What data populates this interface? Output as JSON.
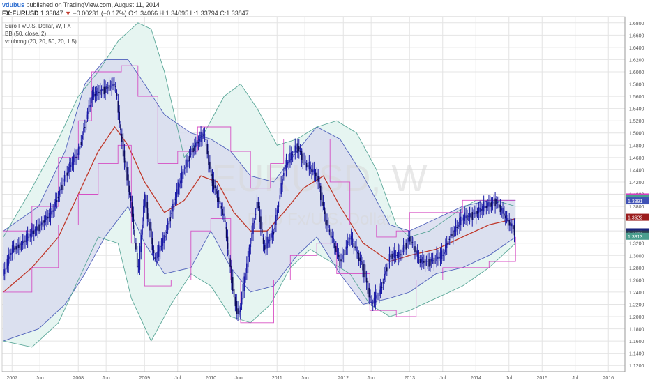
{
  "header": {
    "user": "vdubus",
    "published": "published on TradingView.com, August 11, 2014",
    "symbol": "FX:EURUSD",
    "last": "1.33847",
    "change_arrow": "▼",
    "change": "−0.00231 (−0.17%)",
    "ohlc": "O:1.34066 H:1.34095 L:1.33794 C:1.33847"
  },
  "legend": {
    "instrument": "Euro Fx/U.S. Dollar, W, FX",
    "bb": "BB (50, close, 2)",
    "vdubong": "vdubong (20, 20, 50, 20, 1.5)"
  },
  "watermark": {
    "symbol": "EURUSD, W",
    "name": "Euro Fx/U.S. Dollar"
  },
  "chart_data": {
    "type": "candlestick",
    "ylim": [
      1.11,
      1.69
    ],
    "y_ticks": [
      "1.6800",
      "1.6600",
      "1.6400",
      "1.6200",
      "1.6000",
      "1.5800",
      "1.5600",
      "1.5400",
      "1.5200",
      "1.5000",
      "1.4800",
      "1.4600",
      "1.4400",
      "1.4200",
      "1.4000",
      "1.3800",
      "1.3600",
      "1.3400",
      "1.3200",
      "1.3000",
      "1.2800",
      "1.2600",
      "1.2400",
      "1.2200",
      "1.2000",
      "1.1800",
      "1.1600",
      "1.1400",
      "1.1200"
    ],
    "x_ticks": [
      {
        "label": "2007",
        "t": 2007.0
      },
      {
        "label": "Jun",
        "t": 2007.42
      },
      {
        "label": "2008",
        "t": 2008.0
      },
      {
        "label": "Jun",
        "t": 2008.42
      },
      {
        "label": "2009",
        "t": 2009.0
      },
      {
        "label": "Jul",
        "t": 2009.5
      },
      {
        "label": "2010",
        "t": 2010.0
      },
      {
        "label": "Jun",
        "t": 2010.42
      },
      {
        "label": "2011",
        "t": 2011.0
      },
      {
        "label": "Jun",
        "t": 2011.42
      },
      {
        "label": "2012",
        "t": 2012.0
      },
      {
        "label": "Jun",
        "t": 2012.42
      },
      {
        "label": "2013",
        "t": 2013.0
      },
      {
        "label": "Jul",
        "t": 2013.5
      },
      {
        "label": "2014",
        "t": 2014.0
      },
      {
        "label": "Jul",
        "t": 2014.5
      },
      {
        "label": "2015",
        "t": 2015.0
      },
      {
        "label": "Jul",
        "t": 2015.5
      },
      {
        "label": "2016",
        "t": 2016.0
      }
    ],
    "xlim": [
      2006.85,
      2016.25
    ],
    "price_path": [
      [
        2006.87,
        1.27
      ],
      [
        2007.0,
        1.31
      ],
      [
        2007.15,
        1.32
      ],
      [
        2007.42,
        1.35
      ],
      [
        2007.6,
        1.37
      ],
      [
        2007.8,
        1.43
      ],
      [
        2008.0,
        1.47
      ],
      [
        2008.2,
        1.56
      ],
      [
        2008.35,
        1.57
      ],
      [
        2008.55,
        1.58
      ],
      [
        2008.65,
        1.49
      ],
      [
        2008.8,
        1.38
      ],
      [
        2008.9,
        1.27
      ],
      [
        2009.0,
        1.4
      ],
      [
        2009.15,
        1.29
      ],
      [
        2009.3,
        1.33
      ],
      [
        2009.5,
        1.41
      ],
      [
        2009.7,
        1.47
      ],
      [
        2009.9,
        1.5
      ],
      [
        2010.0,
        1.43
      ],
      [
        2010.2,
        1.36
      ],
      [
        2010.35,
        1.23
      ],
      [
        2010.42,
        1.2
      ],
      [
        2010.55,
        1.29
      ],
      [
        2010.7,
        1.39
      ],
      [
        2010.8,
        1.31
      ],
      [
        2010.95,
        1.34
      ],
      [
        2011.1,
        1.44
      ],
      [
        2011.3,
        1.48
      ],
      [
        2011.42,
        1.45
      ],
      [
        2011.6,
        1.43
      ],
      [
        2011.75,
        1.35
      ],
      [
        2011.95,
        1.29
      ],
      [
        2012.1,
        1.33
      ],
      [
        2012.3,
        1.28
      ],
      [
        2012.42,
        1.22
      ],
      [
        2012.55,
        1.24
      ],
      [
        2012.7,
        1.3
      ],
      [
        2012.85,
        1.3
      ],
      [
        2013.0,
        1.33
      ],
      [
        2013.15,
        1.29
      ],
      [
        2013.3,
        1.29
      ],
      [
        2013.5,
        1.3
      ],
      [
        2013.6,
        1.33
      ],
      [
        2013.8,
        1.36
      ],
      [
        2014.0,
        1.37
      ],
      [
        2014.15,
        1.38
      ],
      [
        2014.3,
        1.39
      ],
      [
        2014.45,
        1.36
      ],
      [
        2014.6,
        1.34
      ]
    ],
    "series": [
      {
        "name": "BB (50, close, 2) basis",
        "color": "#c0392b",
        "points": [
          [
            2006.87,
            1.24
          ],
          [
            2007.3,
            1.28
          ],
          [
            2007.7,
            1.33
          ],
          [
            2008.0,
            1.4
          ],
          [
            2008.3,
            1.47
          ],
          [
            2008.55,
            1.51
          ],
          [
            2008.75,
            1.48
          ],
          [
            2009.0,
            1.42
          ],
          [
            2009.3,
            1.37
          ],
          [
            2009.6,
            1.39
          ],
          [
            2009.85,
            1.43
          ],
          [
            2010.1,
            1.42
          ],
          [
            2010.35,
            1.37
          ],
          [
            2010.6,
            1.34
          ],
          [
            2010.85,
            1.34
          ],
          [
            2011.1,
            1.37
          ],
          [
            2011.4,
            1.41
          ],
          [
            2011.7,
            1.43
          ],
          [
            2011.95,
            1.38
          ],
          [
            2012.3,
            1.32
          ],
          [
            2012.7,
            1.29
          ],
          [
            2013.0,
            1.3
          ],
          [
            2013.4,
            1.31
          ],
          [
            2013.8,
            1.33
          ],
          [
            2014.2,
            1.35
          ],
          [
            2014.6,
            1.36
          ]
        ]
      },
      {
        "name": "BB upper",
        "color": "#3f51b5",
        "points": [
          [
            2006.87,
            1.34
          ],
          [
            2007.4,
            1.38
          ],
          [
            2007.8,
            1.47
          ],
          [
            2008.1,
            1.58
          ],
          [
            2008.4,
            1.62
          ],
          [
            2008.75,
            1.62
          ],
          [
            2009.0,
            1.58
          ],
          [
            2009.3,
            1.53
          ],
          [
            2009.7,
            1.5
          ],
          [
            2010.0,
            1.49
          ],
          [
            2010.3,
            1.47
          ],
          [
            2010.6,
            1.43
          ],
          [
            2010.95,
            1.42
          ],
          [
            2011.3,
            1.47
          ],
          [
            2011.6,
            1.51
          ],
          [
            2011.95,
            1.49
          ],
          [
            2012.3,
            1.43
          ],
          [
            2012.7,
            1.35
          ],
          [
            2013.0,
            1.34
          ],
          [
            2013.4,
            1.36
          ],
          [
            2013.8,
            1.38
          ],
          [
            2014.2,
            1.39
          ],
          [
            2014.6,
            1.39
          ]
        ]
      },
      {
        "name": "BB lower",
        "color": "#3f51b5",
        "points": [
          [
            2006.87,
            1.16
          ],
          [
            2007.4,
            1.18
          ],
          [
            2007.8,
            1.22
          ],
          [
            2008.1,
            1.27
          ],
          [
            2008.4,
            1.33
          ],
          [
            2008.75,
            1.38
          ],
          [
            2009.0,
            1.32
          ],
          [
            2009.3,
            1.27
          ],
          [
            2009.7,
            1.28
          ],
          [
            2010.0,
            1.34
          ],
          [
            2010.3,
            1.28
          ],
          [
            2010.6,
            1.24
          ],
          [
            2010.95,
            1.25
          ],
          [
            2011.3,
            1.3
          ],
          [
            2011.6,
            1.33
          ],
          [
            2011.95,
            1.27
          ],
          [
            2012.3,
            1.22
          ],
          [
            2012.7,
            1.23
          ],
          [
            2013.0,
            1.24
          ],
          [
            2013.4,
            1.27
          ],
          [
            2013.8,
            1.28
          ],
          [
            2014.2,
            1.3
          ],
          [
            2014.6,
            1.33
          ]
        ]
      },
      {
        "name": "vdubong outer upper",
        "color": "#4a9e8e",
        "points": [
          [
            2006.87,
            1.33
          ],
          [
            2007.3,
            1.41
          ],
          [
            2007.7,
            1.49
          ],
          [
            2008.0,
            1.56
          ],
          [
            2008.3,
            1.6
          ],
          [
            2008.6,
            1.65
          ],
          [
            2008.9,
            1.68
          ],
          [
            2009.1,
            1.67
          ],
          [
            2009.3,
            1.6
          ],
          [
            2009.6,
            1.46
          ],
          [
            2009.9,
            1.5
          ],
          [
            2010.2,
            1.56
          ],
          [
            2010.45,
            1.58
          ],
          [
            2010.7,
            1.54
          ],
          [
            2011.0,
            1.48
          ],
          [
            2011.3,
            1.49
          ],
          [
            2011.6,
            1.51
          ],
          [
            2011.9,
            1.52
          ],
          [
            2012.2,
            1.5
          ],
          [
            2012.5,
            1.44
          ],
          [
            2012.8,
            1.35
          ],
          [
            2013.0,
            1.33
          ],
          [
            2013.3,
            1.34
          ],
          [
            2013.7,
            1.37
          ],
          [
            2014.0,
            1.39
          ],
          [
            2014.3,
            1.39
          ],
          [
            2014.6,
            1.38
          ]
        ]
      },
      {
        "name": "vdubong outer lower",
        "color": "#4a9e8e",
        "points": [
          [
            2006.87,
            1.16
          ],
          [
            2007.3,
            1.15
          ],
          [
            2007.7,
            1.19
          ],
          [
            2008.0,
            1.26
          ],
          [
            2008.3,
            1.33
          ],
          [
            2008.6,
            1.32
          ],
          [
            2008.8,
            1.23
          ],
          [
            2009.1,
            1.16
          ],
          [
            2009.4,
            1.22
          ],
          [
            2009.7,
            1.27
          ],
          [
            2010.0,
            1.25
          ],
          [
            2010.3,
            1.2
          ],
          [
            2010.6,
            1.19
          ],
          [
            2010.9,
            1.22
          ],
          [
            2011.2,
            1.28
          ],
          [
            2011.5,
            1.31
          ],
          [
            2011.8,
            1.29
          ],
          [
            2012.1,
            1.27
          ],
          [
            2012.4,
            1.22
          ],
          [
            2012.7,
            1.2
          ],
          [
            2013.0,
            1.21
          ],
          [
            2013.4,
            1.23
          ],
          [
            2013.8,
            1.25
          ],
          [
            2014.2,
            1.28
          ],
          [
            2014.6,
            1.32
          ]
        ]
      },
      {
        "name": "vdubong channel upper",
        "color": "#d43fbf",
        "points": [
          [
            2006.87,
            1.34
          ],
          [
            2007.3,
            1.38
          ],
          [
            2007.7,
            1.46
          ],
          [
            2008.0,
            1.52
          ],
          [
            2008.2,
            1.6
          ],
          [
            2008.65,
            1.61
          ],
          [
            2008.9,
            1.56
          ],
          [
            2009.2,
            1.45
          ],
          [
            2009.5,
            1.47
          ],
          [
            2009.8,
            1.51
          ],
          [
            2010.0,
            1.51
          ],
          [
            2010.3,
            1.47
          ],
          [
            2010.6,
            1.41
          ],
          [
            2010.9,
            1.45
          ],
          [
            2011.1,
            1.49
          ],
          [
            2011.5,
            1.49
          ],
          [
            2011.8,
            1.42
          ],
          [
            2012.1,
            1.35
          ],
          [
            2012.5,
            1.33
          ],
          [
            2012.8,
            1.34
          ],
          [
            2013.0,
            1.37
          ],
          [
            2013.4,
            1.37
          ],
          [
            2013.8,
            1.39
          ],
          [
            2014.2,
            1.39
          ],
          [
            2014.6,
            1.39
          ]
        ]
      },
      {
        "name": "vdubong channel lower",
        "color": "#d43fbf",
        "points": [
          [
            2006.87,
            1.24
          ],
          [
            2007.3,
            1.28
          ],
          [
            2007.7,
            1.35
          ],
          [
            2008.0,
            1.4
          ],
          [
            2008.3,
            1.45
          ],
          [
            2008.6,
            1.48
          ],
          [
            2008.8,
            1.32
          ],
          [
            2009.0,
            1.25
          ],
          [
            2009.4,
            1.26
          ],
          [
            2009.7,
            1.34
          ],
          [
            2010.0,
            1.36
          ],
          [
            2010.3,
            1.26
          ],
          [
            2010.45,
            1.19
          ],
          [
            2010.7,
            1.19
          ],
          [
            2010.95,
            1.26
          ],
          [
            2011.2,
            1.3
          ],
          [
            2011.6,
            1.32
          ],
          [
            2011.9,
            1.27
          ],
          [
            2012.2,
            1.27
          ],
          [
            2012.4,
            1.21
          ],
          [
            2012.8,
            1.2
          ],
          [
            2013.1,
            1.26
          ],
          [
            2013.5,
            1.28
          ],
          [
            2013.8,
            1.28
          ],
          [
            2014.2,
            1.29
          ],
          [
            2014.6,
            1.33
          ]
        ]
      }
    ],
    "price_labels": [
      {
        "value": 1.3955,
        "text": "1.3955",
        "color": "#d43fbf"
      },
      {
        "value": 1.3935,
        "text": "1.3935",
        "color": "#4a9e8e"
      },
      {
        "value": 1.3891,
        "text": "1.3891",
        "color": "#3f51b5"
      },
      {
        "value": 1.3623,
        "text": "1.3623",
        "color": "#9b1c1c"
      },
      {
        "value": 1.3385,
        "text": "1.3385",
        "color": "#1a237e"
      },
      {
        "value": 1.335,
        "text": "1.3350",
        "color": "#2c3e50"
      },
      {
        "value": 1.3313,
        "text": "1.3313",
        "color": "#4a9e8e"
      }
    ],
    "colors": {
      "candle": "#1a1aa6",
      "fill_outer": "#e6f5f1",
      "fill_inner": "#d8dcee",
      "grid": "#e4e4e4",
      "axis_text": "#555555"
    }
  }
}
